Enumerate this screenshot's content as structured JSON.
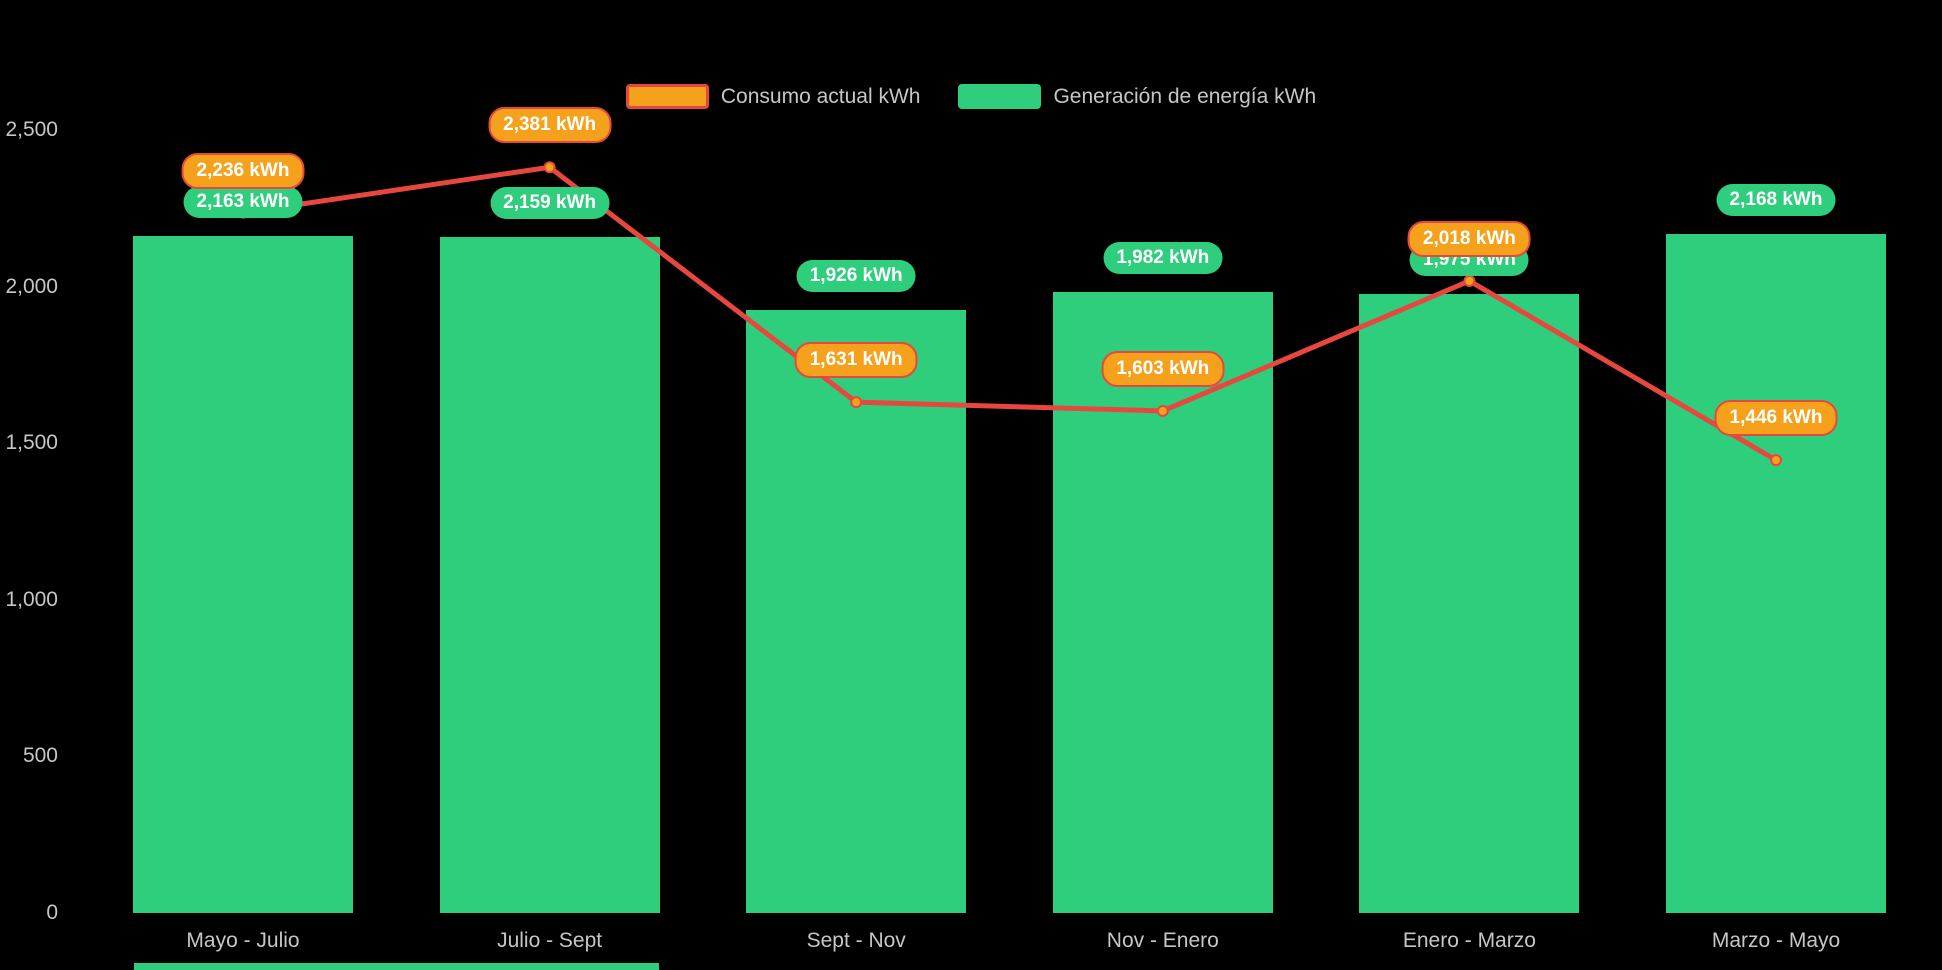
{
  "chart_data": {
    "type": "bar",
    "subtype": "bar-line-combo",
    "title": "",
    "xlabel": "",
    "ylabel": "",
    "unit": "kWh",
    "background": "#000000",
    "grid": false,
    "legend_position": "top",
    "categories": [
      "Mayo - Julio",
      "Julio - Sept",
      "Sept - Nov",
      "Nov - Enero",
      "Enero - Marzo",
      "Marzo - Mayo"
    ],
    "series": [
      {
        "name": "Consumo actual kWh",
        "type": "line",
        "values": [
          2236,
          2381,
          1631,
          1603,
          2018,
          1446
        ],
        "labels": [
          "2,236 kWh",
          "2,381 kWh",
          "1,631 kWh",
          "1,603 kWh",
          "2,018 kWh",
          "1,446 kWh"
        ],
        "color": "#F5A11C",
        "line_color": "#E8473F"
      },
      {
        "name": "Generación de energía kWh",
        "type": "bar",
        "values": [
          2163,
          2159,
          1926,
          1982,
          1975,
          2168
        ],
        "labels": [
          "2,163 kWh",
          "2,159 kWh",
          "1,926 kWh",
          "1,982 kWh",
          "1,975 kWh",
          "2,168 kWh"
        ],
        "color": "#2FCE7C"
      }
    ],
    "ylim": [
      0,
      2500
    ],
    "yticks": [
      0,
      500,
      1000,
      1500,
      2000,
      2500
    ],
    "ytick_labels": [
      "0",
      "500",
      "1,000",
      "1,500",
      "2,000",
      "2,500"
    ]
  },
  "colors": {
    "bar_green": "#2FCE7C",
    "marker_orange": "#F5A11C",
    "line_red": "#E8473F",
    "axis_text": "#C6C6C6",
    "label_text": "#FFFFFF"
  }
}
